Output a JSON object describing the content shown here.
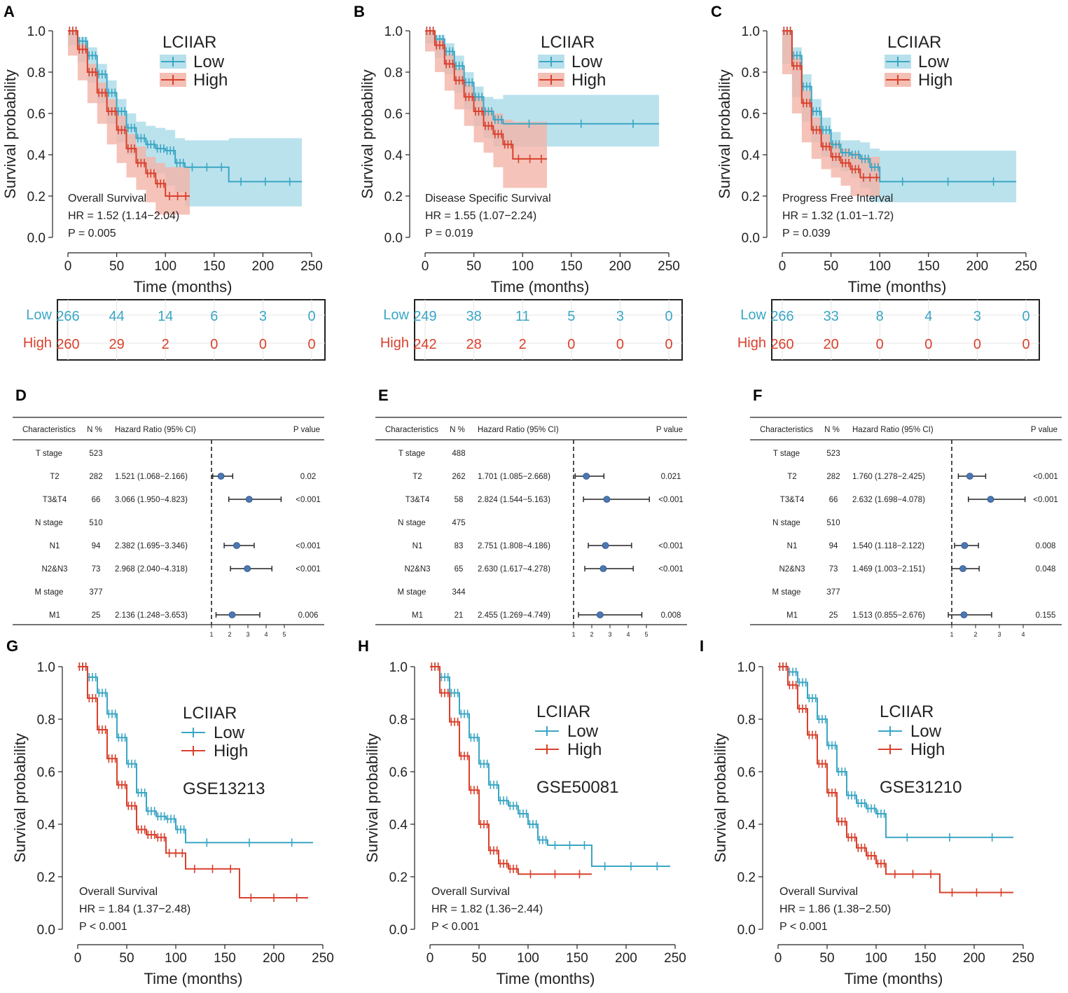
{
  "colors": {
    "low": "#3aa6c4",
    "high": "#d9402c",
    "low_ci": "#a9dbe8",
    "high_ci": "#f2b4a8",
    "point": "#4a78b5"
  },
  "km_panels": [
    {
      "letter": "A",
      "legend_title": "LCIIAR",
      "low_label": "Low",
      "high_label": "High",
      "endpoint": "Overall Survival",
      "hr": "HR = 1.52 (1.14−2.04)",
      "p": "P = 0.005",
      "xlabel": "Time (months)",
      "ylabel": "Survival probability",
      "xticks": [
        "0",
        "50",
        "100",
        "150",
        "200",
        "250"
      ],
      "yticks": [
        "0.0",
        "0.2",
        "0.4",
        "0.6",
        "0.8",
        "1.0"
      ],
      "risk_low": [
        "266",
        "44",
        "14",
        "6",
        "3",
        "0"
      ],
      "risk_high": [
        "260",
        "29",
        "2",
        "0",
        "0",
        "0"
      ]
    },
    {
      "letter": "B",
      "legend_title": "LCIIAR",
      "low_label": "Low",
      "high_label": "High",
      "endpoint": "Disease Specific Survival",
      "hr": "HR = 1.55 (1.07−2.24)",
      "p": "P = 0.019",
      "xlabel": "Time (months)",
      "ylabel": "Survival probability",
      "xticks": [
        "0",
        "50",
        "100",
        "150",
        "200",
        "250"
      ],
      "yticks": [
        "0.0",
        "0.2",
        "0.4",
        "0.6",
        "0.8",
        "1.0"
      ],
      "risk_low": [
        "249",
        "38",
        "11",
        "5",
        "3",
        "0"
      ],
      "risk_high": [
        "242",
        "28",
        "2",
        "0",
        "0",
        "0"
      ]
    },
    {
      "letter": "C",
      "legend_title": "LCIIAR",
      "low_label": "Low",
      "high_label": "High",
      "endpoint": "Progress Free Interval",
      "hr": "HR = 1.32 (1.01−1.72)",
      "p": "P = 0.039",
      "xlabel": "Time (months)",
      "ylabel": "Survival probability",
      "xticks": [
        "0",
        "50",
        "100",
        "150",
        "200",
        "250"
      ],
      "yticks": [
        "0.0",
        "0.2",
        "0.4",
        "0.6",
        "0.8",
        "1.0"
      ],
      "risk_low": [
        "266",
        "33",
        "8",
        "4",
        "3",
        "0"
      ],
      "risk_high": [
        "260",
        "20",
        "0",
        "0",
        "0",
        "0"
      ]
    },
    {
      "letter": "G",
      "legend_title": "LCIIAR",
      "low_label": "Low",
      "high_label": "High",
      "dataset": "GSE13213",
      "endpoint": "Overall Survival",
      "hr": "HR = 1.84 (1.37−2.48)",
      "p": "P < 0.001",
      "xlabel": "Time (months)",
      "ylabel": "Survival probability",
      "xticks": [
        "0",
        "50",
        "100",
        "150",
        "200",
        "250"
      ],
      "yticks": [
        "0.0",
        "0.2",
        "0.4",
        "0.6",
        "0.8",
        "1.0"
      ]
    },
    {
      "letter": "H",
      "legend_title": "LCIIAR",
      "low_label": "Low",
      "high_label": "High",
      "dataset": "GSE50081",
      "endpoint": "Overall Survival",
      "hr": "HR = 1.82 (1.36−2.44)",
      "p": "P < 0.001",
      "xlabel": "Time (months)",
      "ylabel": "Survival probability",
      "xticks": [
        "0",
        "50",
        "100",
        "150",
        "200",
        "250"
      ],
      "yticks": [
        "0.0",
        "0.2",
        "0.4",
        "0.6",
        "0.8",
        "1.0"
      ]
    },
    {
      "letter": "I",
      "legend_title": "LCIIAR",
      "low_label": "Low",
      "high_label": "High",
      "dataset": "GSE31210",
      "endpoint": "Overall Survival",
      "hr": "HR = 1.86 (1.38−2.50)",
      "p": "P < 0.001",
      "xlabel": "Time (months)",
      "ylabel": "Survival probability",
      "xticks": [
        "0",
        "50",
        "100",
        "150",
        "200",
        "250"
      ],
      "yticks": [
        "0.0",
        "0.2",
        "0.4",
        "0.6",
        "0.8",
        "1.0"
      ]
    }
  ],
  "forest_panels": [
    {
      "letter": "D",
      "headers": [
        "Characteristics",
        "N %",
        "Hazard Ratio (95% CI)",
        "P value"
      ],
      "rows": [
        {
          "label": "T stage",
          "n": "523",
          "hr": "",
          "p": ""
        },
        {
          "label": "T2",
          "n": "282",
          "hr": "1.521 (1.068−2.166)",
          "p": "0.02"
        },
        {
          "label": "T3&T4",
          "n": "66",
          "hr": "3.066 (1.950−4.823)",
          "p": "<0.001"
        },
        {
          "label": "N stage",
          "n": "510",
          "hr": "",
          "p": ""
        },
        {
          "label": "N1",
          "n": "94",
          "hr": "2.382 (1.695−3.346)",
          "p": "<0.001"
        },
        {
          "label": "N2&N3",
          "n": "73",
          "hr": "2.968 (2.040−4.318)",
          "p": "<0.001"
        },
        {
          "label": "M stage",
          "n": "377",
          "hr": "",
          "p": ""
        },
        {
          "label": "M1",
          "n": "25",
          "hr": "2.136 (1.248−3.653)",
          "p": "0.006"
        }
      ],
      "xticks": [
        "1",
        "2",
        "3",
        "4",
        "5"
      ]
    },
    {
      "letter": "E",
      "headers": [
        "Characteristics",
        "N %",
        "Hazard Ratio (95% CI)",
        "P value"
      ],
      "rows": [
        {
          "label": "T stage",
          "n": "488",
          "hr": "",
          "p": ""
        },
        {
          "label": "T2",
          "n": "262",
          "hr": "1.701 (1.085−2.668)",
          "p": "0.021"
        },
        {
          "label": "T3&T4",
          "n": "58",
          "hr": "2.824 (1.544−5.163)",
          "p": "<0.001"
        },
        {
          "label": "N stage",
          "n": "475",
          "hr": "",
          "p": ""
        },
        {
          "label": "N1",
          "n": "83",
          "hr": "2.751 (1.808−4.186)",
          "p": "<0.001"
        },
        {
          "label": "N2&N3",
          "n": "65",
          "hr": "2.630 (1.617−4.278)",
          "p": "<0.001"
        },
        {
          "label": "M stage",
          "n": "344",
          "hr": "",
          "p": ""
        },
        {
          "label": "M1",
          "n": "21",
          "hr": "2.455 (1.269−4.749)",
          "p": "0.008"
        }
      ],
      "xticks": [
        "1",
        "2",
        "3",
        "4",
        "5"
      ]
    },
    {
      "letter": "F",
      "headers": [
        "Characteristics",
        "N %",
        "Hazard Ratio (95% CI)",
        "P value"
      ],
      "rows": [
        {
          "label": "T stage",
          "n": "523",
          "hr": "",
          "p": ""
        },
        {
          "label": "T2",
          "n": "282",
          "hr": "1.760 (1.278−2.425)",
          "p": "<0.001"
        },
        {
          "label": "T3&T4",
          "n": "66",
          "hr": "2.632 (1.698−4.078)",
          "p": "<0.001"
        },
        {
          "label": "N stage",
          "n": "510",
          "hr": "",
          "p": ""
        },
        {
          "label": "N1",
          "n": "94",
          "hr": "1.540 (1.118−2.122)",
          "p": "0.008"
        },
        {
          "label": "N2&N3",
          "n": "73",
          "hr": "1.469 (1.003−2.151)",
          "p": "0.048"
        },
        {
          "label": "M stage",
          "n": "377",
          "hr": "",
          "p": ""
        },
        {
          "label": "M1",
          "n": "25",
          "hr": "1.513 (0.855−2.676)",
          "p": "0.155"
        }
      ],
      "xticks": [
        "1",
        "2",
        "3",
        "4"
      ]
    }
  ],
  "chart_data": [
    {
      "type": "line",
      "title": "A",
      "series": [
        {
          "name": "Low",
          "x": [
            0,
            10,
            20,
            30,
            40,
            50,
            60,
            70,
            80,
            90,
            100,
            110,
            120,
            165,
            240
          ],
          "values": [
            1.0,
            0.95,
            0.88,
            0.79,
            0.7,
            0.61,
            0.53,
            0.48,
            0.45,
            0.43,
            0.42,
            0.36,
            0.34,
            0.27,
            0.27
          ],
          "ci_low": [
            1.0,
            0.93,
            0.85,
            0.75,
            0.65,
            0.55,
            0.46,
            0.4,
            0.36,
            0.33,
            0.31,
            0.25,
            0.22,
            0.15,
            0.15
          ],
          "ci_high": [
            1.0,
            0.97,
            0.92,
            0.84,
            0.76,
            0.67,
            0.6,
            0.56,
            0.54,
            0.53,
            0.52,
            0.48,
            0.47,
            0.48,
            0.48
          ]
        },
        {
          "name": "High",
          "x": [
            0,
            10,
            20,
            30,
            40,
            50,
            60,
            70,
            80,
            90,
            100,
            125
          ],
          "values": [
            1.0,
            0.91,
            0.8,
            0.7,
            0.61,
            0.52,
            0.43,
            0.36,
            0.31,
            0.26,
            0.2,
            0.2
          ],
          "ci_low": [
            1.0,
            0.88,
            0.76,
            0.65,
            0.55,
            0.45,
            0.36,
            0.29,
            0.23,
            0.17,
            0.11,
            0.11
          ],
          "ci_high": [
            1.0,
            0.94,
            0.84,
            0.75,
            0.67,
            0.59,
            0.5,
            0.44,
            0.39,
            0.36,
            0.34,
            0.34
          ]
        }
      ],
      "xlim": [
        0,
        250
      ],
      "ylim": [
        0,
        1
      ]
    },
    {
      "type": "line",
      "title": "B",
      "series": [
        {
          "name": "Low",
          "x": [
            0,
            10,
            20,
            30,
            40,
            50,
            60,
            70,
            80,
            240
          ],
          "values": [
            1.0,
            0.96,
            0.9,
            0.83,
            0.75,
            0.68,
            0.61,
            0.57,
            0.55,
            0.55
          ],
          "ci_low": [
            1.0,
            0.94,
            0.87,
            0.79,
            0.7,
            0.62,
            0.54,
            0.48,
            0.44,
            0.44
          ],
          "ci_high": [
            1.0,
            0.98,
            0.94,
            0.88,
            0.8,
            0.73,
            0.68,
            0.67,
            0.69,
            0.69
          ]
        },
        {
          "name": "High",
          "x": [
            0,
            10,
            20,
            30,
            40,
            50,
            60,
            70,
            80,
            90,
            125
          ],
          "values": [
            1.0,
            0.93,
            0.84,
            0.76,
            0.68,
            0.61,
            0.54,
            0.5,
            0.45,
            0.38,
            0.38
          ],
          "ci_low": [
            1.0,
            0.9,
            0.8,
            0.71,
            0.62,
            0.54,
            0.46,
            0.41,
            0.34,
            0.24,
            0.24
          ],
          "ci_high": [
            1.0,
            0.96,
            0.89,
            0.82,
            0.74,
            0.68,
            0.62,
            0.6,
            0.57,
            0.56,
            0.56
          ]
        }
      ],
      "xlim": [
        0,
        250
      ],
      "ylim": [
        0,
        1
      ]
    },
    {
      "type": "line",
      "title": "C",
      "series": [
        {
          "name": "Low",
          "x": [
            0,
            10,
            20,
            30,
            40,
            50,
            60,
            70,
            80,
            90,
            100,
            240
          ],
          "values": [
            1.0,
            0.88,
            0.73,
            0.61,
            0.52,
            0.45,
            0.41,
            0.4,
            0.38,
            0.34,
            0.27,
            0.27
          ],
          "ci_low": [
            1.0,
            0.84,
            0.68,
            0.56,
            0.46,
            0.39,
            0.34,
            0.32,
            0.29,
            0.24,
            0.17,
            0.17
          ],
          "ci_high": [
            1.0,
            0.92,
            0.79,
            0.67,
            0.58,
            0.51,
            0.47,
            0.47,
            0.46,
            0.43,
            0.42,
            0.42
          ]
        },
        {
          "name": "High",
          "x": [
            0,
            10,
            20,
            30,
            40,
            50,
            60,
            70,
            80,
            100
          ],
          "values": [
            1.0,
            0.83,
            0.65,
            0.52,
            0.44,
            0.39,
            0.36,
            0.33,
            0.29,
            0.29
          ],
          "ci_low": [
            1.0,
            0.79,
            0.6,
            0.46,
            0.38,
            0.33,
            0.29,
            0.25,
            0.2,
            0.2
          ],
          "ci_high": [
            1.0,
            0.87,
            0.71,
            0.58,
            0.5,
            0.46,
            0.43,
            0.41,
            0.39,
            0.39
          ]
        }
      ],
      "xlim": [
        0,
        250
      ],
      "ylim": [
        0,
        1
      ]
    },
    {
      "type": "line",
      "title": "G",
      "series": [
        {
          "name": "Low",
          "x": [
            0,
            10,
            20,
            30,
            40,
            50,
            60,
            70,
            80,
            90,
            100,
            110,
            240
          ],
          "values": [
            1.0,
            0.96,
            0.9,
            0.82,
            0.73,
            0.63,
            0.52,
            0.45,
            0.43,
            0.42,
            0.38,
            0.33,
            0.33
          ]
        },
        {
          "name": "High",
          "x": [
            0,
            10,
            20,
            30,
            40,
            50,
            60,
            70,
            80,
            90,
            110,
            165,
            235
          ],
          "values": [
            1.0,
            0.88,
            0.76,
            0.65,
            0.55,
            0.47,
            0.38,
            0.36,
            0.35,
            0.29,
            0.23,
            0.12,
            0.12
          ]
        }
      ],
      "xlim": [
        0,
        250
      ],
      "ylim": [
        0,
        1
      ]
    },
    {
      "type": "line",
      "title": "H",
      "series": [
        {
          "name": "Low",
          "x": [
            0,
            10,
            20,
            30,
            40,
            50,
            60,
            70,
            80,
            90,
            100,
            110,
            120,
            165,
            245
          ],
          "values": [
            1.0,
            0.96,
            0.9,
            0.82,
            0.73,
            0.63,
            0.55,
            0.49,
            0.47,
            0.44,
            0.4,
            0.34,
            0.32,
            0.24,
            0.24
          ]
        },
        {
          "name": "High",
          "x": [
            0,
            10,
            20,
            30,
            40,
            50,
            60,
            70,
            80,
            90,
            165
          ],
          "values": [
            1.0,
            0.9,
            0.79,
            0.66,
            0.53,
            0.4,
            0.3,
            0.25,
            0.23,
            0.21,
            0.21
          ]
        }
      ],
      "xlim": [
        0,
        250
      ],
      "ylim": [
        0,
        1
      ]
    },
    {
      "type": "line",
      "title": "I",
      "series": [
        {
          "name": "Low",
          "x": [
            0,
            10,
            20,
            30,
            40,
            50,
            60,
            70,
            80,
            90,
            100,
            110,
            240
          ],
          "values": [
            1.0,
            0.98,
            0.94,
            0.88,
            0.8,
            0.7,
            0.6,
            0.51,
            0.48,
            0.46,
            0.44,
            0.35,
            0.35
          ]
        },
        {
          "name": "High",
          "x": [
            0,
            10,
            20,
            30,
            40,
            50,
            60,
            70,
            80,
            90,
            100,
            110,
            165,
            240
          ],
          "values": [
            1.0,
            0.93,
            0.84,
            0.74,
            0.63,
            0.52,
            0.41,
            0.35,
            0.31,
            0.28,
            0.25,
            0.21,
            0.14,
            0.14
          ]
        }
      ],
      "xlim": [
        0,
        250
      ],
      "ylim": [
        0,
        1
      ]
    },
    {
      "type": "forest",
      "title": "D",
      "hr": [
        1.521,
        3.066,
        2.382,
        2.968,
        2.136
      ],
      "lo": [
        1.068,
        1.95,
        1.695,
        2.04,
        1.248
      ],
      "hi": [
        2.166,
        4.823,
        3.346,
        4.318,
        3.653
      ]
    },
    {
      "type": "forest",
      "title": "E",
      "hr": [
        1.701,
        2.824,
        2.751,
        2.63,
        2.455
      ],
      "lo": [
        1.085,
        1.544,
        1.808,
        1.617,
        1.269
      ],
      "hi": [
        2.668,
        5.163,
        4.186,
        4.278,
        4.749
      ]
    },
    {
      "type": "forest",
      "title": "F",
      "hr": [
        1.76,
        2.632,
        1.54,
        1.469,
        1.513
      ],
      "lo": [
        1.278,
        1.698,
        1.118,
        1.003,
        0.855
      ],
      "hi": [
        2.425,
        4.078,
        2.122,
        2.151,
        2.676
      ]
    }
  ]
}
